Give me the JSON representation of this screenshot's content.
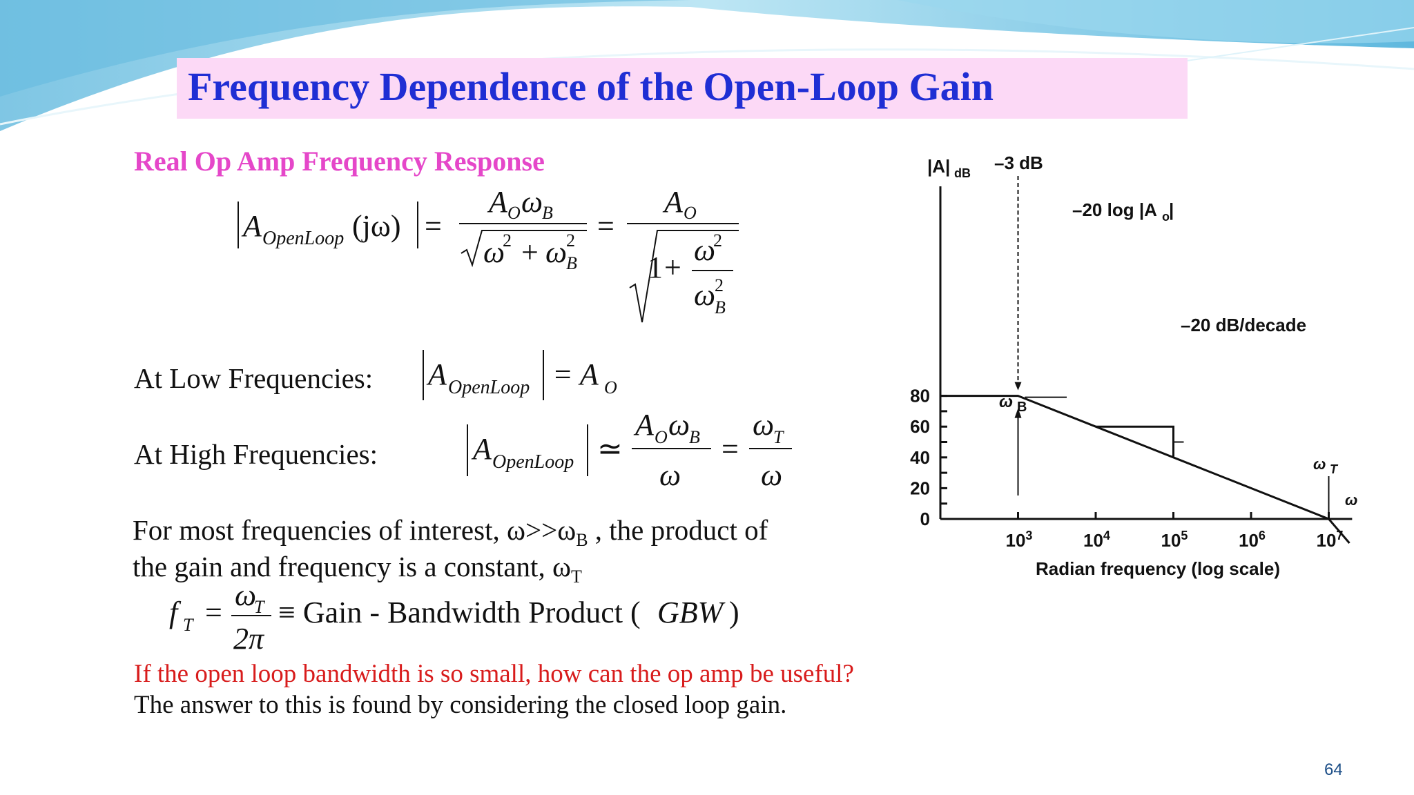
{
  "slide": {
    "title": "Frequency Dependence of the Open-Loop Gain",
    "subtitle": "Real Op Amp Frequency Response",
    "page_number": "64"
  },
  "equations": {
    "main": {
      "A": "A",
      "sub_openloop": "OpenLoop",
      "jw": "(jω)",
      "equals": "=",
      "A_O": "A",
      "sub_O": "O",
      "omega": "ω",
      "sub_B": "B",
      "sq": "2",
      "plus": "+",
      "one": "1"
    },
    "low": {
      "label": "At Low Frequencies:",
      "A": "A",
      "sub_openloop": "OpenLoop",
      "rhs": "= A",
      "sub_O": "O"
    },
    "high": {
      "label": "At High Frequencies:",
      "A": "A",
      "sub_openloop": "OpenLoop",
      "approx": "≃",
      "equals": "=",
      "omega": "ω",
      "sub_O": "O",
      "sub_B": "B",
      "sub_T": "T"
    },
    "gbw": {
      "f": "f",
      "sub_T": "T",
      "equals": "=",
      "omega": "ω",
      "two_pi": "2π",
      "rhs": "≡ Gain - Bandwidth Product (",
      "gbw": "GBW",
      "close": ")"
    }
  },
  "text": {
    "interest_line1a": "For most frequencies of interest, ω>>ω",
    "interest_sub_B": "B",
    "interest_line1b": " , the product of",
    "interest_line2a": "the gain and frequency is a constant, ω",
    "interest_sub_T": "T",
    "question": "If the open loop bandwidth is so small, how can the op amp be useful?",
    "answer": "The answer to this is found by considering the closed loop gain."
  },
  "chart_data": {
    "type": "line",
    "ylabel_main": "|A|",
    "ylabel_sub": "dB",
    "xlabel": "Radian frequency (log scale)",
    "x_scale": "log",
    "xlim": [
      100,
      30000000
    ],
    "ylim": [
      0,
      80
    ],
    "y_ticks": [
      "0",
      "20",
      "40",
      "60",
      "80"
    ],
    "x_ticks": [
      {
        "value": 1000,
        "base": "10",
        "exp": "3"
      },
      {
        "value": 10000,
        "base": "10",
        "exp": "4"
      },
      {
        "value": 100000,
        "base": "10",
        "exp": "5"
      },
      {
        "value": 1000000,
        "base": "10",
        "exp": "6"
      },
      {
        "value": 10000000,
        "base": "10",
        "exp": "7"
      }
    ],
    "series": [
      {
        "values": [
          [
            100,
            80
          ],
          [
            1000,
            80
          ],
          [
            10000,
            60
          ],
          [
            100000,
            40
          ],
          [
            1000000,
            20
          ],
          [
            10000000,
            0
          ]
        ]
      },
      {
        "values": [
          [
            100,
            80
          ],
          [
            1000,
            80
          ],
          [
            10000000,
            0
          ]
        ]
      }
    ],
    "annotations": {
      "minus3db": "–3 dB",
      "log_ao": "–20 log |A",
      "log_ao_sub": "o",
      "log_ao_end": "|",
      "slope": "–20 dB/decade",
      "omega_b": "ω",
      "omega_b_sub": "B",
      "omega_t": "ω",
      "omega_t_sub": "T",
      "omega_axis": "ω"
    }
  }
}
